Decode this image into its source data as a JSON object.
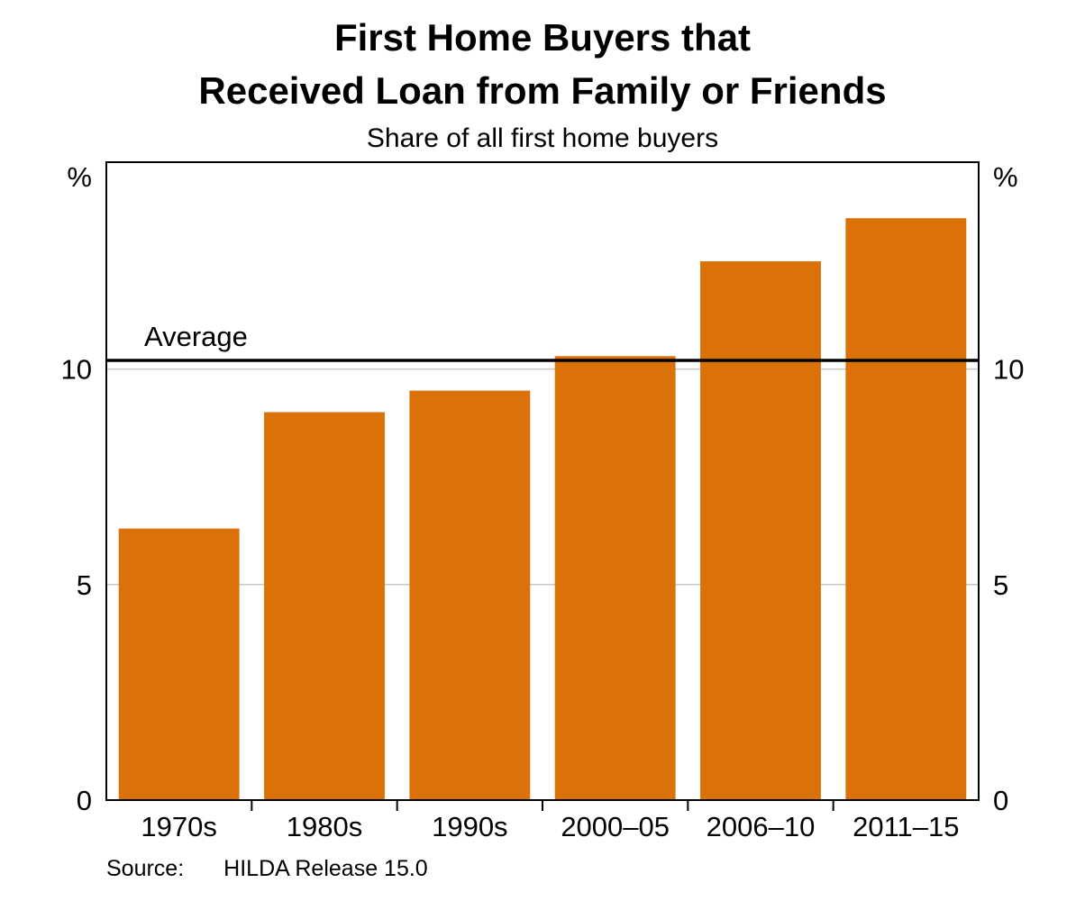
{
  "title": {
    "line1": "First Home Buyers that",
    "line2": "Received Loan from Family or Friends"
  },
  "subtitle": "Share of all first home buyers",
  "source": {
    "label": "Source:",
    "text": "HILDA Release 15.0"
  },
  "chart_data": {
    "type": "bar",
    "title": "First Home Buyers that Received Loan from Family or Friends",
    "subtitle": "Share of all first home buyers",
    "categories": [
      "1970s",
      "1980s",
      "1990s",
      "2000–05",
      "2006–10",
      "2011–15"
    ],
    "values": [
      6.3,
      9.0,
      9.5,
      10.3,
      12.5,
      13.5
    ],
    "average_line": {
      "value": 10.2,
      "label": "Average"
    },
    "xlabel": "",
    "ylabel_left": "%",
    "ylabel_right": "%",
    "yticks": [
      0,
      5,
      10
    ],
    "ylim": [
      0,
      14.8
    ],
    "grid": "horizontal",
    "legend": "none",
    "bar_color": "#DB7209",
    "grid_color": "#c9c9c9",
    "axis_color": "#000000",
    "average_line_color": "#000000"
  }
}
